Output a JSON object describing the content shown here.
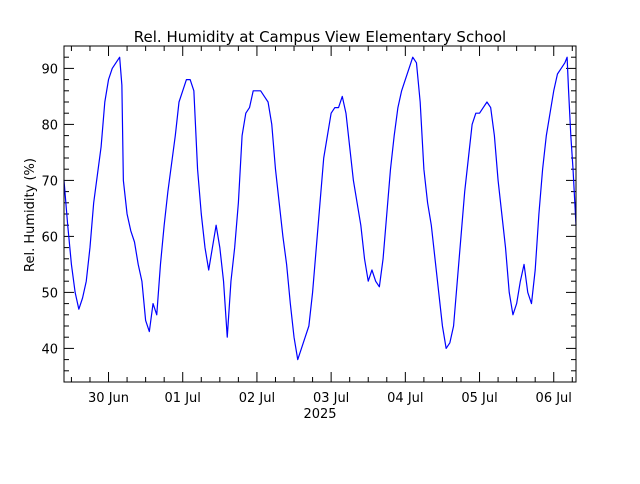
{
  "chart_data": {
    "type": "line",
    "title": "Rel. Humidity at Campus View Elementary School",
    "ylabel": "Rel. Humidity (%)",
    "xlabel": "2025",
    "xlim": [
      -0.6,
      6.3
    ],
    "ylim": [
      34,
      94
    ],
    "x_ticks": [
      {
        "value": 0,
        "label": "30 Jun"
      },
      {
        "value": 1,
        "label": "01 Jul"
      },
      {
        "value": 2,
        "label": "02 Jul"
      },
      {
        "value": 3,
        "label": "03 Jul"
      },
      {
        "value": 4,
        "label": "04 Jul"
      },
      {
        "value": 5,
        "label": "05 Jul"
      },
      {
        "value": 6,
        "label": "06 Jul"
      }
    ],
    "y_ticks": [
      40,
      50,
      60,
      70,
      80,
      90
    ],
    "grid": false,
    "series": [
      {
        "name": "",
        "color": "#0000ff",
        "points": [
          [
            -0.6,
            70
          ],
          [
            -0.55,
            62
          ],
          [
            -0.5,
            55
          ],
          [
            -0.45,
            50
          ],
          [
            -0.4,
            47
          ],
          [
            -0.35,
            49
          ],
          [
            -0.3,
            52
          ],
          [
            -0.25,
            58
          ],
          [
            -0.2,
            66
          ],
          [
            -0.15,
            71
          ],
          [
            -0.1,
            76
          ],
          [
            -0.05,
            84
          ],
          [
            0.0,
            88
          ],
          [
            0.05,
            90
          ],
          [
            0.1,
            91
          ],
          [
            0.15,
            92
          ],
          [
            0.18,
            87
          ],
          [
            0.2,
            70
          ],
          [
            0.25,
            64
          ],
          [
            0.3,
            61
          ],
          [
            0.35,
            59
          ],
          [
            0.4,
            55
          ],
          [
            0.45,
            52
          ],
          [
            0.5,
            45
          ],
          [
            0.55,
            43
          ],
          [
            0.6,
            48
          ],
          [
            0.65,
            46
          ],
          [
            0.7,
            55
          ],
          [
            0.75,
            62
          ],
          [
            0.8,
            68
          ],
          [
            0.85,
            73
          ],
          [
            0.9,
            78
          ],
          [
            0.95,
            84
          ],
          [
            1.0,
            86
          ],
          [
            1.05,
            88
          ],
          [
            1.1,
            88
          ],
          [
            1.15,
            86
          ],
          [
            1.2,
            72
          ],
          [
            1.25,
            64
          ],
          [
            1.3,
            58
          ],
          [
            1.35,
            54
          ],
          [
            1.4,
            58
          ],
          [
            1.45,
            62
          ],
          [
            1.5,
            58
          ],
          [
            1.55,
            52
          ],
          [
            1.6,
            42
          ],
          [
            1.65,
            52
          ],
          [
            1.7,
            58
          ],
          [
            1.75,
            66
          ],
          [
            1.8,
            78
          ],
          [
            1.85,
            82
          ],
          [
            1.9,
            83
          ],
          [
            1.95,
            86
          ],
          [
            2.0,
            86
          ],
          [
            2.05,
            86
          ],
          [
            2.1,
            85
          ],
          [
            2.15,
            84
          ],
          [
            2.2,
            80
          ],
          [
            2.25,
            72
          ],
          [
            2.3,
            66
          ],
          [
            2.35,
            60
          ],
          [
            2.4,
            55
          ],
          [
            2.45,
            48
          ],
          [
            2.5,
            42
          ],
          [
            2.55,
            38
          ],
          [
            2.6,
            40
          ],
          [
            2.65,
            42
          ],
          [
            2.7,
            44
          ],
          [
            2.75,
            50
          ],
          [
            2.8,
            58
          ],
          [
            2.85,
            66
          ],
          [
            2.9,
            74
          ],
          [
            2.95,
            78
          ],
          [
            3.0,
            82
          ],
          [
            3.05,
            83
          ],
          [
            3.1,
            83
          ],
          [
            3.15,
            85
          ],
          [
            3.2,
            82
          ],
          [
            3.25,
            76
          ],
          [
            3.3,
            70
          ],
          [
            3.35,
            66
          ],
          [
            3.4,
            62
          ],
          [
            3.45,
            56
          ],
          [
            3.5,
            52
          ],
          [
            3.55,
            54
          ],
          [
            3.6,
            52
          ],
          [
            3.65,
            51
          ],
          [
            3.7,
            56
          ],
          [
            3.75,
            64
          ],
          [
            3.8,
            72
          ],
          [
            3.85,
            78
          ],
          [
            3.9,
            83
          ],
          [
            3.95,
            86
          ],
          [
            4.0,
            88
          ],
          [
            4.05,
            90
          ],
          [
            4.1,
            92
          ],
          [
            4.15,
            91
          ],
          [
            4.2,
            84
          ],
          [
            4.25,
            72
          ],
          [
            4.3,
            66
          ],
          [
            4.35,
            62
          ],
          [
            4.4,
            56
          ],
          [
            4.45,
            50
          ],
          [
            4.5,
            44
          ],
          [
            4.55,
            40
          ],
          [
            4.6,
            41
          ],
          [
            4.65,
            44
          ],
          [
            4.7,
            52
          ],
          [
            4.75,
            60
          ],
          [
            4.8,
            68
          ],
          [
            4.85,
            74
          ],
          [
            4.9,
            80
          ],
          [
            4.95,
            82
          ],
          [
            5.0,
            82
          ],
          [
            5.05,
            83
          ],
          [
            5.1,
            84
          ],
          [
            5.15,
            83
          ],
          [
            5.2,
            78
          ],
          [
            5.25,
            70
          ],
          [
            5.3,
            64
          ],
          [
            5.35,
            58
          ],
          [
            5.4,
            50
          ],
          [
            5.45,
            46
          ],
          [
            5.5,
            48
          ],
          [
            5.55,
            52
          ],
          [
            5.6,
            55
          ],
          [
            5.65,
            50
          ],
          [
            5.7,
            48
          ],
          [
            5.75,
            54
          ],
          [
            5.8,
            64
          ],
          [
            5.85,
            72
          ],
          [
            5.9,
            78
          ],
          [
            5.95,
            82
          ],
          [
            6.0,
            86
          ],
          [
            6.05,
            89
          ],
          [
            6.1,
            90
          ],
          [
            6.15,
            91
          ],
          [
            6.18,
            92
          ],
          [
            6.2,
            86
          ],
          [
            6.23,
            78
          ],
          [
            6.26,
            72
          ],
          [
            6.3,
            62
          ]
        ]
      }
    ]
  }
}
